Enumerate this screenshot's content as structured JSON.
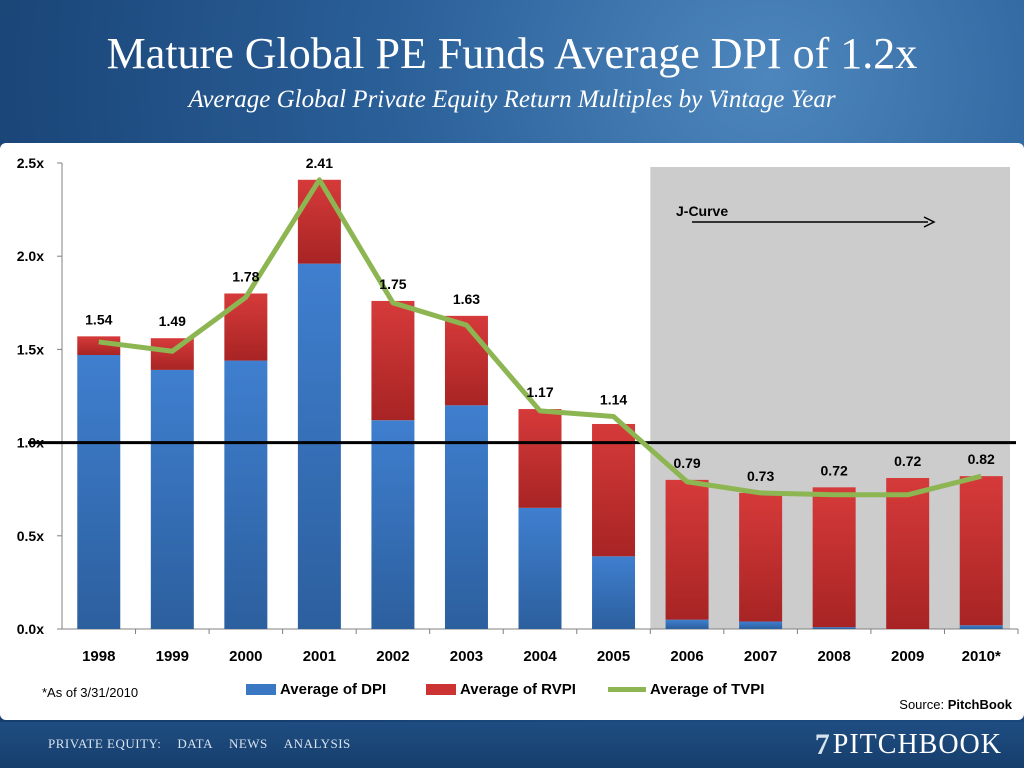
{
  "header": {
    "title": "Mature Global PE Funds Average DPI of 1.2x",
    "subtitle": "Average Global Private Equity Return Multiples by Vintage Year"
  },
  "colors": {
    "dpi": "#3b78c4",
    "rvpi": "#cc3333",
    "tvpi": "#8db653",
    "shade": "#cccccc"
  },
  "chart_data": {
    "type": "bar",
    "stacked": true,
    "categories": [
      "1998",
      "1999",
      "2000",
      "2001",
      "2002",
      "2003",
      "2004",
      "2005",
      "2006",
      "2007",
      "2008",
      "2009",
      "2010*"
    ],
    "series": [
      {
        "name": "Average of DPI",
        "values": [
          1.47,
          1.39,
          1.44,
          1.96,
          1.12,
          1.2,
          0.65,
          0.39,
          0.05,
          0.04,
          0.01,
          0.0,
          0.02
        ]
      },
      {
        "name": "Average of RVPI",
        "values": [
          0.1,
          0.17,
          0.36,
          0.45,
          0.64,
          0.48,
          0.53,
          0.71,
          0.75,
          0.69,
          0.75,
          0.81,
          0.8
        ]
      },
      {
        "name": "Average of TVPI",
        "type": "line",
        "values": [
          1.54,
          1.49,
          1.78,
          2.41,
          1.75,
          1.63,
          1.17,
          1.14,
          0.79,
          0.73,
          0.72,
          0.72,
          0.82
        ]
      }
    ],
    "tvpi_labels": [
      "1.54",
      "1.49",
      "1.78",
      "2.41",
      "1.75",
      "1.63",
      "1.17",
      "1.14",
      "0.79",
      "0.73",
      "0.72",
      "0.72",
      "0.82"
    ],
    "yticks": [
      "0.0x",
      "0.5x",
      "1.0x",
      "1.5x",
      "2.0x",
      "2.5x"
    ],
    "ylim": [
      0,
      2.5
    ],
    "reference_line": 1.0,
    "annotation": "J-Curve",
    "shaded_from_category": "2006",
    "legend_position": "bottom"
  },
  "footnote": "*As of 3/31/2010",
  "source": {
    "prefix": "Source: ",
    "name": "PitchBook"
  },
  "footer": {
    "nav": [
      "PRIVATE EQUITY:",
      "DATA",
      "NEWS",
      "ANALYSIS"
    ],
    "brand": "PITCHBOOK",
    "brand_mark": "7"
  }
}
